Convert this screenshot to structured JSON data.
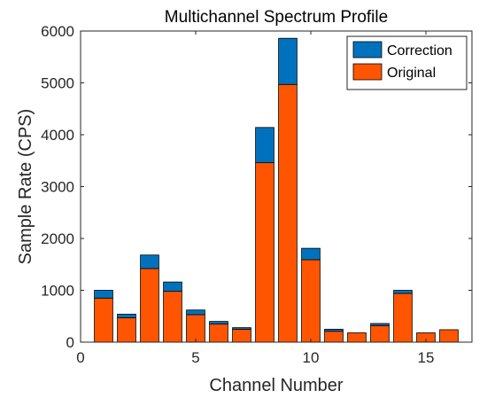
{
  "chart_data": {
    "type": "bar",
    "stacked": true,
    "title": "Multichannel Spectrum Profile",
    "xlabel": "Channel Number",
    "ylabel": "Sample Rate (CPS)",
    "xlim": [
      0,
      17
    ],
    "ylim": [
      0,
      6000
    ],
    "xticks": [
      0,
      5,
      10,
      15
    ],
    "yticks": [
      0,
      1000,
      2000,
      3000,
      4000,
      5000,
      6000
    ],
    "x": [
      1,
      2,
      3,
      4,
      5,
      6,
      7,
      8,
      9,
      10,
      11,
      12,
      13,
      14,
      15,
      16
    ],
    "series": [
      {
        "name": "Original",
        "color": "#FF5500",
        "values": [
          850,
          470,
          1420,
          980,
          530,
          350,
          250,
          3460,
          4970,
          1590,
          210,
          180,
          320,
          940,
          180,
          240
        ]
      },
      {
        "name": "Correction",
        "color": "#0072BD",
        "values": [
          150,
          70,
          260,
          180,
          90,
          50,
          30,
          680,
          890,
          220,
          40,
          0,
          40,
          60,
          0,
          0
        ]
      }
    ],
    "legend": {
      "position": "top-right",
      "order": [
        "Correction",
        "Original"
      ]
    },
    "grid": false
  }
}
